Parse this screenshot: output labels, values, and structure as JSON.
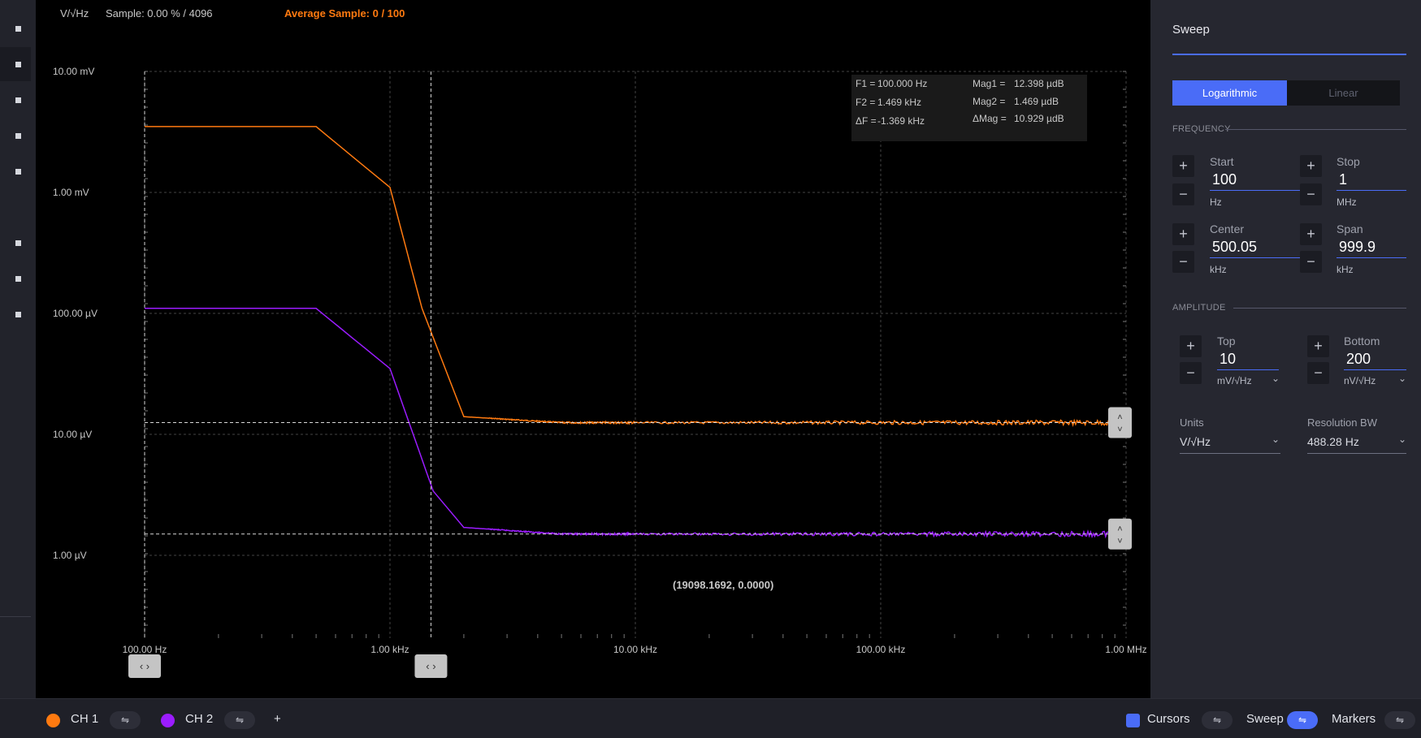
{
  "header": {
    "units": "V/√Hz",
    "sample": "Sample: 0.00 % / 4096",
    "average_sample": "Average Sample: 0 / 100"
  },
  "y_ticks": [
    "10.00 mV",
    "1.00 mV",
    "100.00 µV",
    "10.00 µV",
    "1.00 µV"
  ],
  "x_ticks": [
    "100.00 Hz",
    "1.00 kHz",
    "10.00 kHz",
    "100.00 kHz",
    "1.00 MHz"
  ],
  "cursor_readout": {
    "f1_label": "F1 =",
    "f1_value": "100.000 Hz",
    "f2_label": "F2 =",
    "f2_value": "1.469 kHz",
    "df_label": "ΔF =",
    "df_value": "-1.369 kHz",
    "mag1_label": "Mag1 =",
    "mag1_value": "12.398 µdB",
    "mag2_label": "Mag2 =",
    "mag2_value": "1.469 µdB",
    "dmag_label": "ΔMag =",
    "dmag_value": "10.929 µdB"
  },
  "coord_readout": "(19098.1692, 0.0000)",
  "colors": {
    "ch1": "#ff7a10",
    "ch2": "#9b1cff",
    "accent": "#4a6cf7"
  },
  "chart_data": {
    "type": "line",
    "xscale": "log",
    "yscale": "log",
    "xlim": [
      100,
      1000000
    ],
    "ylim_volts": [
      2e-07,
      0.01
    ],
    "x_unit": "Hz",
    "y_unit": "V/√Hz",
    "series": [
      {
        "name": "CH 1",
        "x": [
          100,
          500,
          1000,
          1350,
          2000,
          5000,
          10000,
          100000,
          1000000
        ],
        "y": [
          0.0035,
          0.0035,
          0.0011,
          0.00011,
          1.4e-05,
          1.25e-05,
          1.25e-05,
          1.25e-05,
          1.25e-05
        ]
      },
      {
        "name": "CH 2",
        "x": [
          100,
          500,
          1000,
          1500,
          2000,
          5000,
          10000,
          100000,
          1000000
        ],
        "y": [
          0.00011,
          0.00011,
          3.5e-05,
          3.4e-06,
          1.7e-06,
          1.5e-06,
          1.5e-06,
          1.5e-06,
          1.5e-06
        ]
      }
    ],
    "cursors": {
      "f1": 100,
      "f2": 1469
    },
    "h_cursors": [
      1.25e-05,
      1.5e-06
    ]
  },
  "sweep": {
    "title": "Sweep",
    "mode_log": "Logarithmic",
    "mode_lin": "Linear",
    "frequency_section": "FREQUENCY",
    "start_label": "Start",
    "start_value": "100",
    "start_unit": "Hz",
    "stop_label": "Stop",
    "stop_value": "1",
    "stop_unit": "MHz",
    "center_label": "Center",
    "center_value": "500.05",
    "center_unit": "kHz",
    "span_label": "Span",
    "span_value": "999.9",
    "span_unit": "kHz",
    "amplitude_section": "AMPLITUDE",
    "top_label": "Top",
    "top_value": "10",
    "top_unit": "mV/√Hz",
    "bottom_label": "Bottom",
    "bottom_value": "200",
    "bottom_unit": "nV/√Hz",
    "units_label": "Units",
    "units_value": "V/√Hz",
    "rbw_label": "Resolution BW",
    "rbw_value": "488.28 Hz"
  },
  "bottom_bar": {
    "ch1": "CH 1",
    "ch2": "CH 2",
    "add": "+",
    "cursors": "Cursors",
    "sweep": "Sweep",
    "markers": "Markers"
  }
}
